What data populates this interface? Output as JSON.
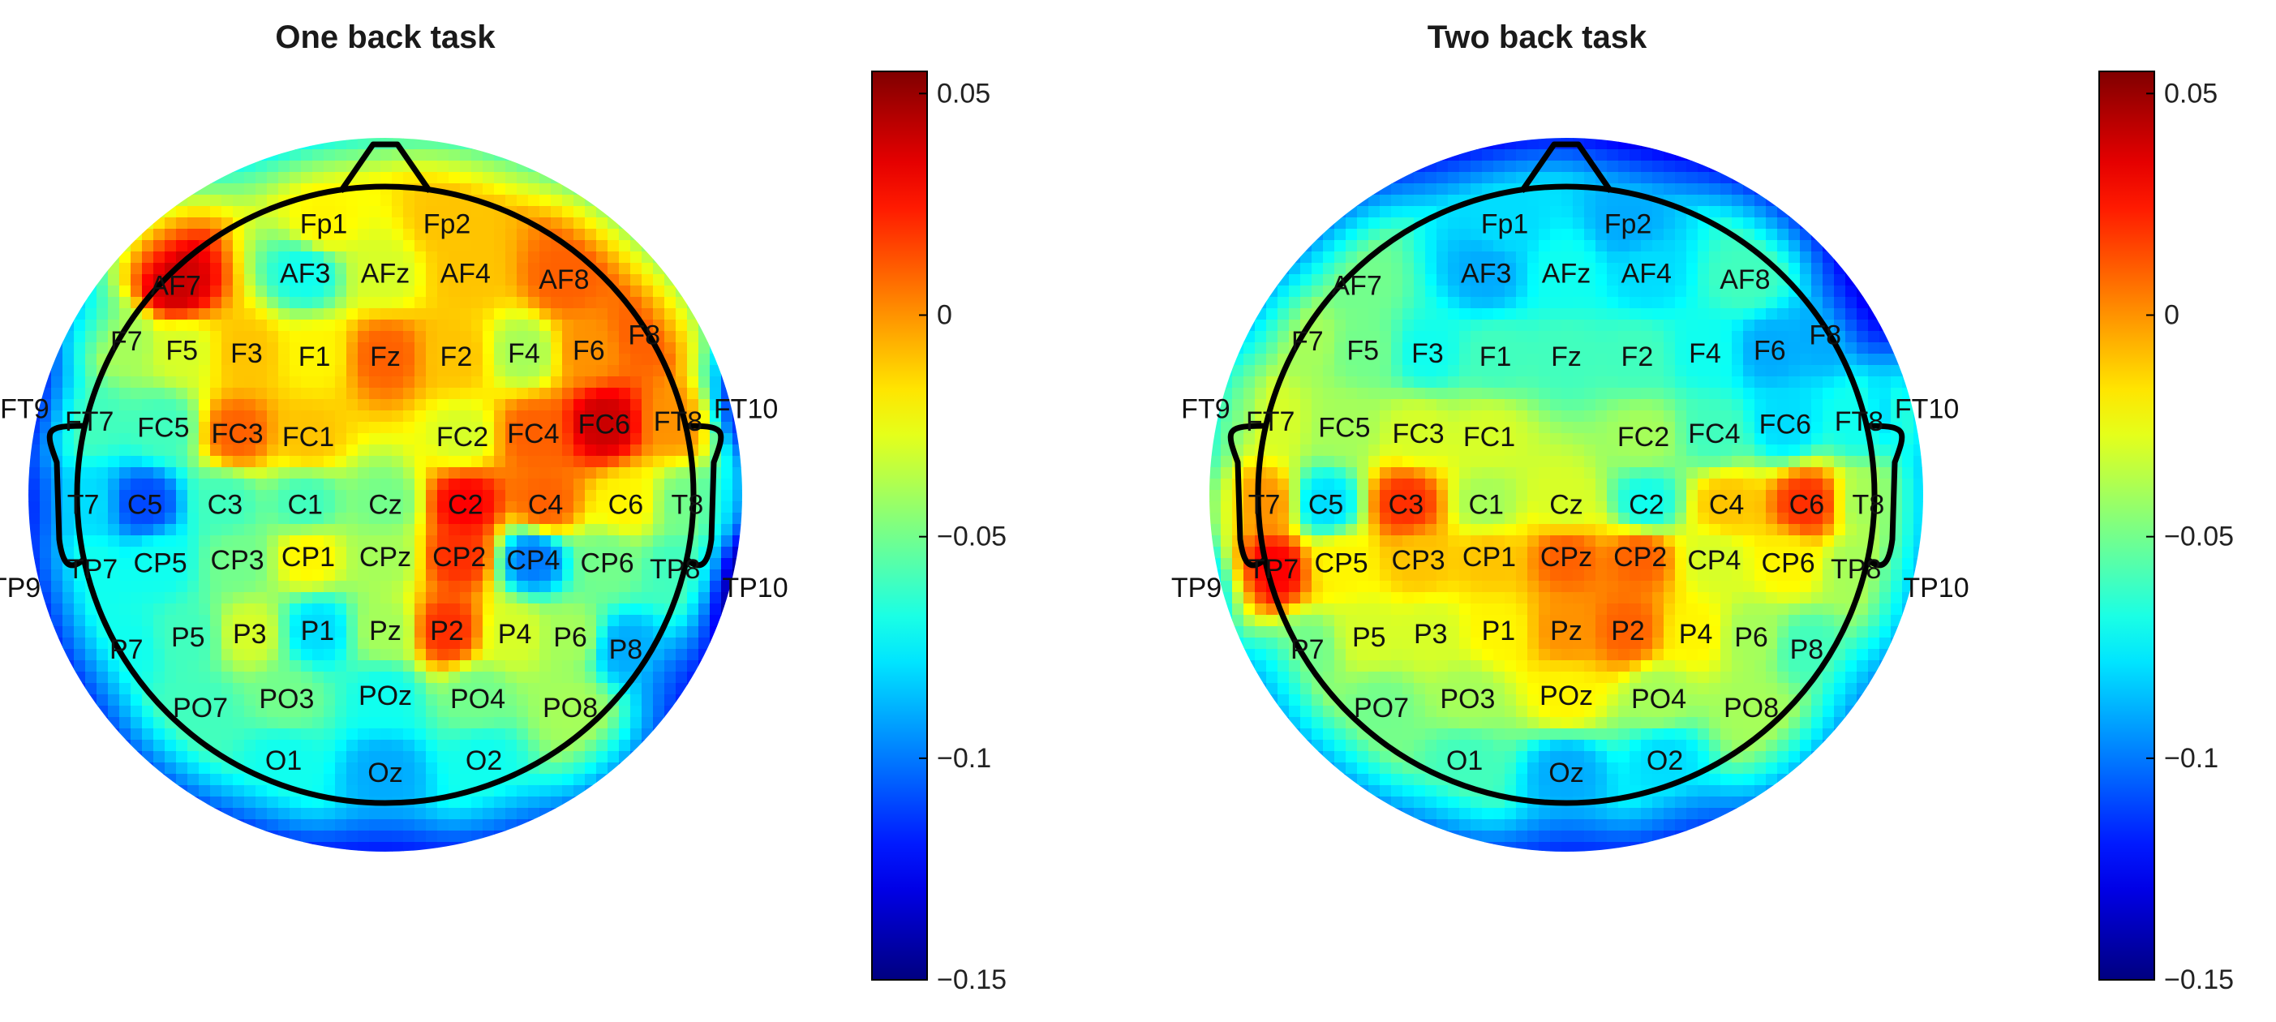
{
  "figure": {
    "colormap": "jet",
    "colorbar_ticks": [
      "0.05",
      "0",
      "−0.05",
      "−0.1",
      "−0.15"
    ],
    "colorbar_values": [
      0.05,
      0,
      -0.05,
      -0.1,
      -0.15
    ],
    "colorbar_range": [
      -0.15,
      0.055
    ]
  },
  "electrode_labels": {
    "Fp1": "Fp1",
    "Fp2": "Fp2",
    "AF7": "AF7",
    "AF3": "AF3",
    "AFz": "AFz",
    "AF4": "AF4",
    "AF8": "AF8",
    "F7": "F7",
    "F5": "F5",
    "F3": "F3",
    "F1": "F1",
    "Fz": "Fz",
    "F2": "F2",
    "F4": "F4",
    "F6": "F6",
    "F8": "F8",
    "FT9": "FT9",
    "FT7": "FT7",
    "FC5": "FC5",
    "FC3": "FC3",
    "FC1": "FC1",
    "FC2": "FC2",
    "FC4": "FC4",
    "FC6": "FC6",
    "FT8": "FT8",
    "FT10": "FT10",
    "T7": "T7",
    "C5": "C5",
    "C3": "C3",
    "C1": "C1",
    "Cz": "Cz",
    "C2": "C2",
    "C4": "C4",
    "C6": "C6",
    "T8": "T8",
    "TP9": "TP9",
    "TP7": "TP7",
    "CP5": "CP5",
    "CP3": "CP3",
    "CP1": "CP1",
    "CPz": "CPz",
    "CP2": "CP2",
    "CP4": "CP4",
    "CP6": "CP6",
    "TP8": "TP8",
    "TP10": "TP10",
    "P7": "P7",
    "P5": "P5",
    "P3": "P3",
    "P1": "P1",
    "Pz": "Pz",
    "P2": "P2",
    "P4": "P4",
    "P6": "P6",
    "P8": "P8",
    "PO7": "PO7",
    "PO3": "PO3",
    "POz": "POz",
    "PO4": "PO4",
    "PO8": "PO8",
    "O1": "O1",
    "Oz": "Oz",
    "O2": "O2"
  },
  "maps": [
    {
      "title": "One back task",
      "values": {
        "Fp1": -0.02,
        "Fp2": -0.01,
        "AF7": 0.04,
        "AF3": -0.07,
        "AFz": -0.03,
        "AF4": -0.01,
        "AF8": 0.01,
        "F7": -0.04,
        "F5": -0.03,
        "F3": -0.01,
        "F1": -0.02,
        "Fz": 0.01,
        "F2": -0.01,
        "F4": -0.04,
        "F6": 0.0,
        "F8": 0.01,
        "FT9": -0.07,
        "FT7": -0.06,
        "FC5": -0.06,
        "FC3": 0.01,
        "FC1": -0.01,
        "FC2": -0.03,
        "FC4": 0.01,
        "FC6": 0.04,
        "FT8": 0.0,
        "FT10": -0.07,
        "T7": -0.08,
        "C5": -0.11,
        "C3": -0.06,
        "C1": -0.06,
        "Cz": -0.05,
        "C2": 0.03,
        "C4": 0.01,
        "C6": -0.02,
        "T8": -0.05,
        "TP9": -0.07,
        "TP7": -0.07,
        "CP5": -0.07,
        "CP3": -0.05,
        "CP1": -0.02,
        "CPz": -0.04,
        "CP2": 0.02,
        "CP4": -0.1,
        "CP6": -0.05,
        "TP8": -0.06,
        "TP10": -0.1,
        "P7": -0.07,
        "P5": -0.06,
        "P3": -0.03,
        "P1": -0.08,
        "Pz": -0.04,
        "P2": 0.02,
        "P4": -0.03,
        "P6": -0.04,
        "P8": -0.09,
        "PO7": -0.06,
        "PO3": -0.05,
        "POz": -0.07,
        "PO4": -0.05,
        "PO8": -0.04,
        "O1": -0.07,
        "Oz": -0.09,
        "O2": -0.07
      }
    },
    {
      "title": "Two back task",
      "values": {
        "Fp1": -0.08,
        "Fp2": -0.09,
        "AF7": -0.05,
        "AF3": -0.09,
        "AFz": -0.07,
        "AF4": -0.08,
        "AF8": -0.06,
        "F7": -0.04,
        "F5": -0.05,
        "F3": -0.07,
        "F1": -0.06,
        "Fz": -0.06,
        "F2": -0.06,
        "F4": -0.07,
        "F6": -0.09,
        "F8": -0.09,
        "FT9": -0.02,
        "FT7": -0.03,
        "FC5": -0.04,
        "FC3": -0.03,
        "FC1": -0.03,
        "FC2": -0.04,
        "FC4": -0.06,
        "FC6": -0.08,
        "FT8": -0.07,
        "FT10": -0.03,
        "T7": 0.0,
        "C5": -0.08,
        "C3": 0.02,
        "C1": -0.04,
        "Cz": -0.03,
        "C2": -0.07,
        "C4": -0.01,
        "C6": 0.02,
        "T8": -0.04,
        "TP9": -0.03,
        "TP7": 0.03,
        "CP5": -0.02,
        "CP3": -0.01,
        "CP1": -0.01,
        "CPz": 0.01,
        "CP2": 0.01,
        "CP4": -0.03,
        "CP6": -0.02,
        "TP8": -0.04,
        "TP10": -0.04,
        "P7": -0.05,
        "P5": -0.03,
        "P3": -0.03,
        "P1": -0.02,
        "Pz": 0.0,
        "P2": 0.01,
        "P4": -0.02,
        "P6": -0.04,
        "P8": -0.06,
        "PO7": -0.05,
        "PO3": -0.04,
        "POz": -0.02,
        "PO4": -0.04,
        "PO8": -0.04,
        "O1": -0.06,
        "Oz": -0.09,
        "O2": -0.08
      }
    }
  ]
}
